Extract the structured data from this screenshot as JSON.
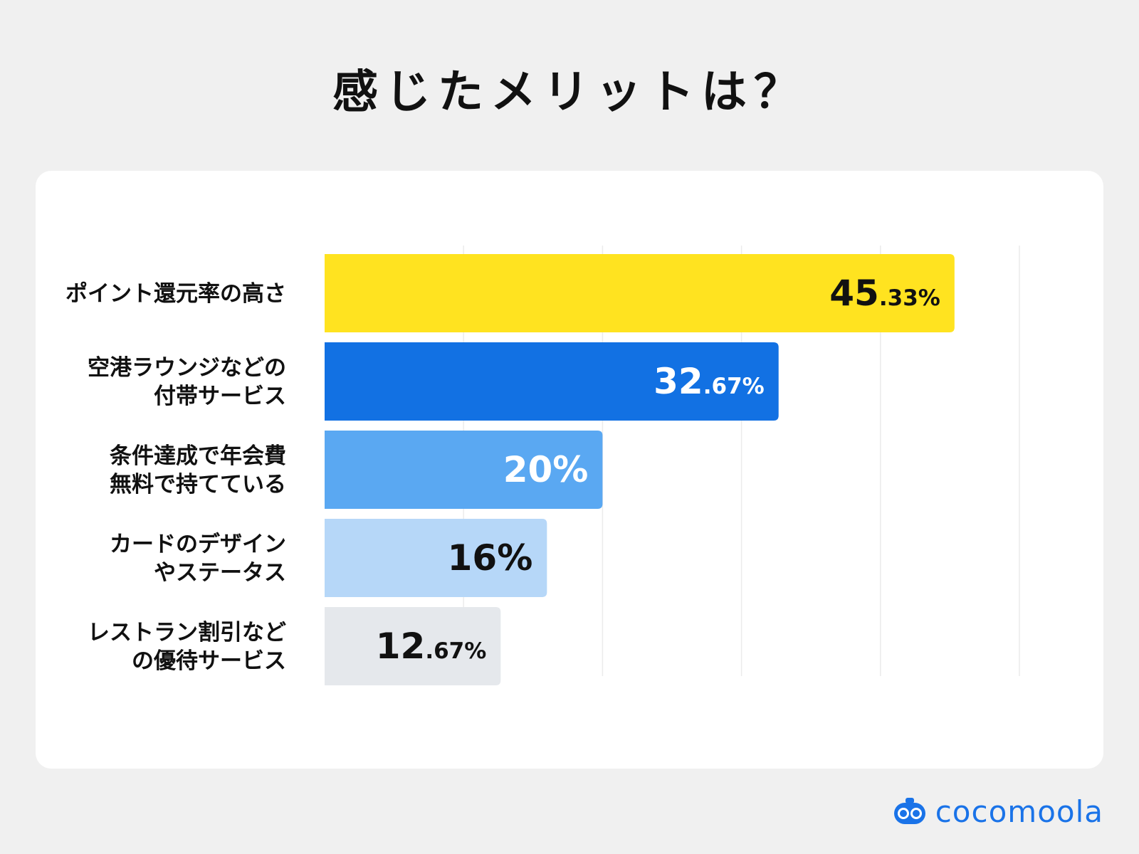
{
  "title": "感じたメリットは？",
  "brand": {
    "name": "cocomoola",
    "color": "#1a73e8",
    "icon": "bot-logo-icon"
  },
  "chart_data": {
    "type": "bar",
    "orientation": "horizontal",
    "grid": true,
    "xlim": [
      0,
      50
    ],
    "categories": [
      [
        "ポイント還元率の高さ"
      ],
      [
        "空港ラウンジなどの",
        "付帯サービス"
      ],
      [
        "条件達成で年会費",
        "無料で持てている"
      ],
      [
        "カードのデザイン",
        "やステータス"
      ],
      [
        "レストラン割引など",
        "の優待サービス"
      ]
    ],
    "values": [
      45.33,
      32.67,
      20,
      16,
      12.67
    ],
    "labels": [
      {
        "main": "45",
        "small": ".33%"
      },
      {
        "main": "32",
        "small": ".67%"
      },
      {
        "main": "20%",
        "small": ""
      },
      {
        "main": "16%",
        "small": ""
      },
      {
        "main": "12",
        "small": ".67%"
      }
    ],
    "colors": [
      "#ffe320",
      "#1271e3",
      "#5aa8f2",
      "#b6d7f8",
      "#e5e8ec"
    ],
    "label_colors": [
      "#111111",
      "#ffffff",
      "#ffffff",
      "#111111",
      "#111111"
    ]
  }
}
